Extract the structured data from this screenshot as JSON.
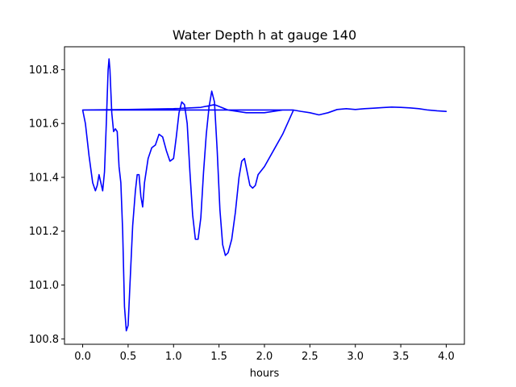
{
  "chart_data": {
    "type": "line",
    "title": "Water Depth h at gauge 140",
    "xlabel": "hours",
    "ylabel": "",
    "xlim": [
      -0.2,
      4.2
    ],
    "ylim": [
      100.78,
      101.885
    ],
    "xticks": [
      0.0,
      0.5,
      1.0,
      1.5,
      2.0,
      2.5,
      3.0,
      3.5,
      4.0
    ],
    "xtick_labels": [
      "0.0",
      "0.5",
      "1.0",
      "1.5",
      "2.0",
      "2.5",
      "3.0",
      "3.5",
      "4.0"
    ],
    "yticks": [
      100.8,
      101.0,
      101.2,
      101.4,
      101.6,
      101.8
    ],
    "ytick_labels": [
      "100.8",
      "101.0",
      "101.2",
      "101.4",
      "101.6",
      "101.8"
    ],
    "grid": false,
    "legend": "none",
    "series": [
      {
        "color": "#0000ff",
        "x": [
          0.0,
          0.03,
          0.07,
          0.11,
          0.14,
          0.16,
          0.18,
          0.2,
          0.22,
          0.24,
          0.26,
          0.28,
          0.29,
          0.3,
          0.32,
          0.34,
          0.36,
          0.38,
          0.4,
          0.42,
          0.44,
          0.46,
          0.48,
          0.5,
          0.52,
          0.55,
          0.58,
          0.6,
          0.62,
          0.64,
          0.66,
          0.68,
          0.72,
          0.76,
          0.8,
          0.84,
          0.88,
          0.92,
          0.96,
          1.0,
          1.03,
          1.06,
          1.09,
          1.12,
          1.15,
          1.18,
          1.21,
          1.24,
          1.27,
          1.3,
          1.33,
          1.36,
          1.39,
          1.42,
          1.45,
          1.48,
          1.51,
          1.54,
          1.57,
          1.6,
          1.64,
          1.68,
          1.72,
          1.75,
          1.78,
          1.81,
          1.84,
          1.87,
          1.9,
          1.93,
          2.0,
          2.1,
          2.2,
          2.32,
          2.2,
          2.0,
          1.8,
          1.6,
          1.45,
          1.3,
          1.0,
          0.5,
          0.0,
          0.5,
          1.0,
          1.5,
          2.0,
          2.32,
          2.4,
          2.5,
          2.6,
          2.7,
          2.8,
          2.9,
          3.0,
          3.1,
          3.2,
          3.3,
          3.4,
          3.5,
          3.6,
          3.7,
          3.8,
          3.9,
          4.0
        ],
        "y": [
          101.65,
          101.6,
          101.48,
          101.38,
          101.35,
          101.37,
          101.41,
          101.38,
          101.35,
          101.42,
          101.6,
          101.8,
          101.84,
          101.8,
          101.64,
          101.57,
          101.58,
          101.57,
          101.44,
          101.38,
          101.2,
          100.92,
          100.83,
          100.85,
          101.0,
          101.22,
          101.35,
          101.41,
          101.41,
          101.33,
          101.29,
          101.38,
          101.47,
          101.51,
          101.52,
          101.56,
          101.55,
          101.5,
          101.46,
          101.47,
          101.55,
          101.64,
          101.68,
          101.67,
          101.6,
          101.42,
          101.26,
          101.17,
          101.17,
          101.25,
          101.42,
          101.56,
          101.66,
          101.72,
          101.68,
          101.5,
          101.28,
          101.15,
          101.11,
          101.12,
          101.17,
          101.27,
          101.4,
          101.46,
          101.47,
          101.42,
          101.37,
          101.36,
          101.37,
          101.41,
          101.44,
          101.5,
          101.56,
          101.65,
          101.65,
          101.64,
          101.64,
          101.65,
          101.67,
          101.66,
          101.655,
          101.652,
          101.65,
          101.65,
          101.65,
          101.65,
          101.65,
          101.65,
          101.645,
          101.64,
          101.632,
          101.64,
          101.652,
          101.655,
          101.652,
          101.655,
          101.657,
          101.659,
          101.661,
          101.66,
          101.658,
          101.655,
          101.65,
          101.647,
          101.645
        ]
      }
    ]
  }
}
